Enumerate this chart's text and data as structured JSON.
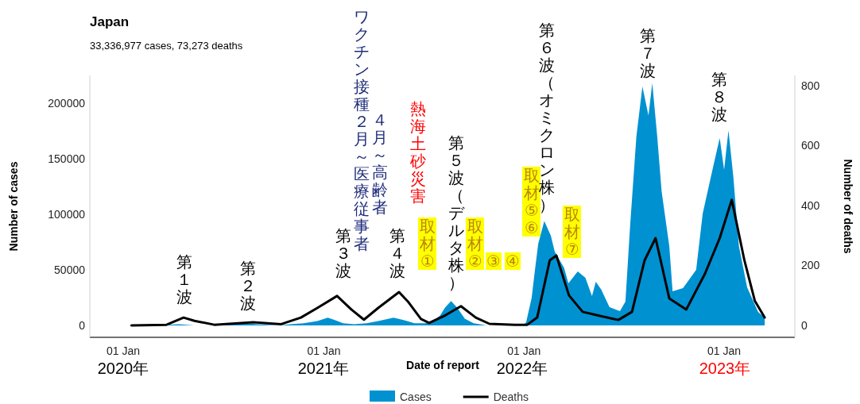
{
  "chart_data": {
    "type": "area",
    "title": "Japan",
    "subtitle": "33,336,977 cases, 73,273 deaths",
    "xlabel": "Date of report",
    "ylabel": "Number of cases",
    "y2label": "Number of deaths",
    "xlim": [
      "2019-11-01",
      "2023-05-10"
    ],
    "xticks": [
      {
        "value": "2020-01-01",
        "label": "01 Jan"
      },
      {
        "value": "2021-01-01",
        "label": "01 Jan"
      },
      {
        "value": "2022-01-01",
        "label": "01 Jan"
      },
      {
        "value": "2023-01-01",
        "label": "01 Jan"
      }
    ],
    "ylim": [
      -10700,
      225000
    ],
    "yticks": [
      0,
      50000,
      100000,
      150000,
      200000
    ],
    "y2lim": [
      -40,
      834
    ],
    "y2ticks": [
      0,
      200,
      400,
      600,
      800
    ],
    "grid": false,
    "legend": "bottom",
    "series": [
      {
        "name": "Cases",
        "color": "#0091d1",
        "x": [
          "2020-01-16",
          "2020-03-01",
          "2020-04-11",
          "2020-05-10",
          "2020-06-20",
          "2020-07-20",
          "2020-08-07",
          "2020-09-01",
          "2020-10-10",
          "2020-11-01",
          "2020-11-25",
          "2020-12-20",
          "2021-01-08",
          "2021-01-20",
          "2021-02-05",
          "2021-02-25",
          "2021-03-20",
          "2021-04-10",
          "2021-05-08",
          "2021-05-25",
          "2021-06-15",
          "2021-07-05",
          "2021-07-20",
          "2021-08-01",
          "2021-08-10",
          "2021-08-21",
          "2021-09-01",
          "2021-09-15",
          "2021-10-01",
          "2021-10-25",
          "2021-12-01",
          "2021-12-31",
          "2022-01-05",
          "2022-01-15",
          "2022-01-21",
          "2022-01-27",
          "2022-02-07",
          "2022-02-19",
          "2022-02-26",
          "2022-03-15",
          "2022-03-23",
          "2022-04-09",
          "2022-04-23",
          "2022-05-05",
          "2022-05-12",
          "2022-05-22",
          "2022-06-06",
          "2022-06-25",
          "2022-07-05",
          "2022-07-14",
          "2022-07-25",
          "2022-08-05",
          "2022-08-16",
          "2022-08-23",
          "2022-09-01",
          "2022-09-09",
          "2022-09-23",
          "2022-09-29",
          "2022-10-18",
          "2022-11-11",
          "2022-11-23",
          "2022-12-13",
          "2022-12-24",
          "2023-01-01",
          "2023-01-09",
          "2023-01-18",
          "2023-01-28",
          "2023-02-12",
          "2023-03-04",
          "2023-03-16"
        ],
        "values": [
          0,
          0,
          1000,
          0,
          0,
          1000,
          2000,
          1000,
          0,
          1000,
          2000,
          4000,
          7000,
          5000,
          2000,
          1000,
          2000,
          4000,
          7000,
          5000,
          2000,
          2000,
          4000,
          9000,
          16000,
          22000,
          16000,
          6000,
          2000,
          0,
          0,
          0,
          3000,
          25000,
          50000,
          73500,
          94000,
          80700,
          66400,
          52000,
          37800,
          48500,
          42800,
          26400,
          39300,
          32100,
          16400,
          12900,
          21400,
          92800,
          170000,
          215000,
          189000,
          218000,
          170000,
          120700,
          71400,
          30700,
          33600,
          50000,
          100700,
          145000,
          168500,
          140000,
          175600,
          132800,
          71400,
          34300,
          12100,
          7000
        ]
      },
      {
        "name": "Deaths",
        "type": "line",
        "color": "#000000",
        "axis": "y2",
        "x": [
          "2020-01-16",
          "2020-03-20",
          "2020-04-20",
          "2020-05-10",
          "2020-06-15",
          "2020-08-25",
          "2020-10-15",
          "2020-11-20",
          "2020-12-20",
          "2021-01-25",
          "2021-02-20",
          "2021-03-15",
          "2021-04-10",
          "2021-05-18",
          "2021-06-03",
          "2021-06-27",
          "2021-07-12",
          "2021-08-11",
          "2021-09-08",
          "2021-10-05",
          "2021-10-30",
          "2021-12-15",
          "2022-01-07",
          "2022-01-25",
          "2022-02-17",
          "2022-03-01",
          "2022-03-24",
          "2022-04-18",
          "2022-05-18",
          "2022-06-22",
          "2022-07-17",
          "2022-08-09",
          "2022-08-29",
          "2022-09-23",
          "2022-10-24",
          "2022-11-27",
          "2022-12-24",
          "2023-01-15",
          "2023-02-07",
          "2023-02-26",
          "2023-03-16"
        ],
        "values": [
          0,
          2,
          26,
          15,
          2,
          10,
          4,
          26,
          58,
          98,
          53,
          19,
          58,
          111,
          80,
          21,
          8,
          34,
          64,
          26,
          5,
          2,
          2,
          26,
          217,
          233,
          100,
          45,
          32,
          18,
          45,
          217,
          291,
          90,
          53,
          172,
          291,
          419,
          217,
          82,
          26
        ]
      }
    ],
    "annotations": [
      "2020年",
      "2021年",
      "2022年",
      "2023年",
      "第１波",
      "第２波",
      "第３波",
      "ワクチン接種２月～医療従事者",
      "４月～高齢者",
      "第４波",
      "熱海土砂災害",
      "取材①",
      "第５波（デルタ株）",
      "取材②",
      "③",
      "④",
      "取材⑤⑥",
      "第６波（オミクロン株）",
      "取材⑦",
      "第７波",
      "第８波"
    ]
  }
}
